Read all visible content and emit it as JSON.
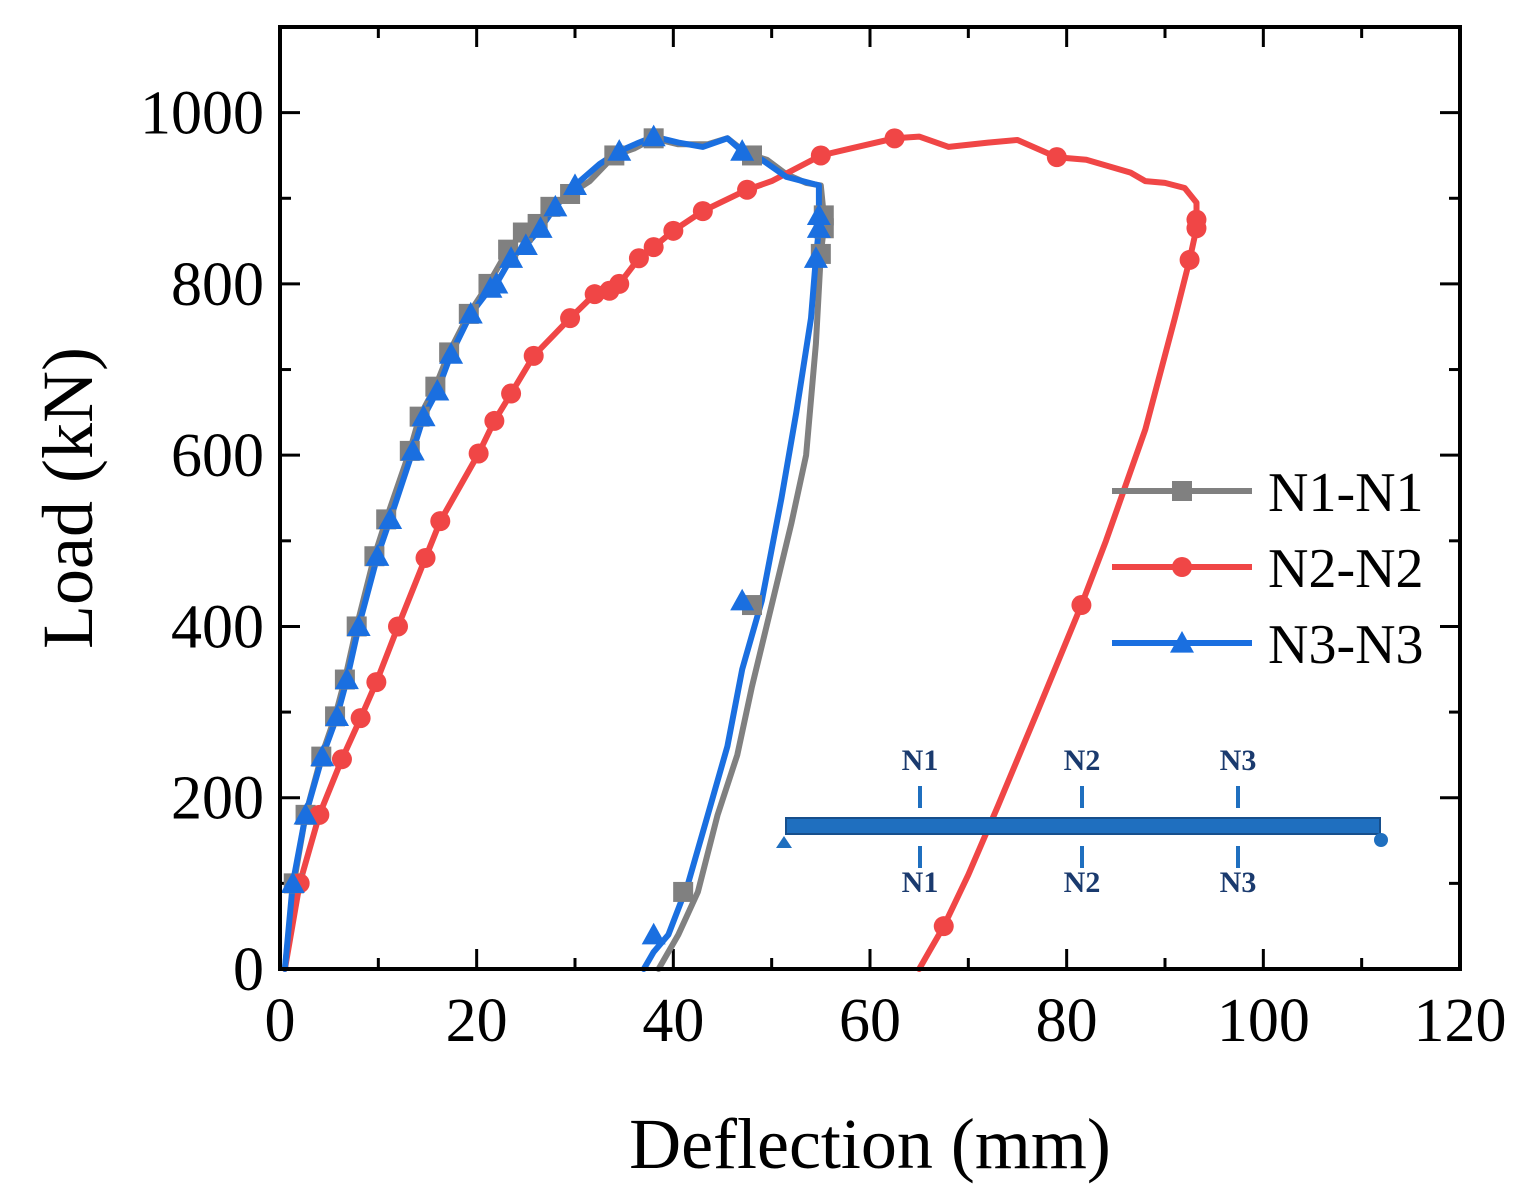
{
  "chart_data": {
    "type": "line",
    "title": "",
    "xlabel": "Deflection (mm)",
    "ylabel": "Load (kN)",
    "xlim": [
      0,
      120
    ],
    "ylim": [
      0,
      1100
    ],
    "xticks": [
      0,
      20,
      40,
      60,
      80,
      100,
      120
    ],
    "yticks": [
      0,
      200,
      400,
      600,
      800,
      1000
    ],
    "xtick_labels": [
      "0",
      "20",
      "40",
      "60",
      "80",
      "100",
      "120"
    ],
    "ytick_labels": [
      "0",
      "200",
      "400",
      "600",
      "800",
      "1000"
    ],
    "legend_position": "right-middle",
    "series": [
      {
        "name": "N1-N1",
        "color": "#808080",
        "marker": "square",
        "x": [
          0.5,
          1.4,
          2.6,
          4.2,
          5.6,
          6.6,
          7.8,
          9.6,
          10.8,
          13.2,
          14.2,
          15.8,
          17.2,
          19.2,
          21.2,
          23.2,
          24.7,
          26.2,
          27.5,
          29.5,
          31.5,
          34.0,
          36.0,
          38.0,
          40.5,
          43.5,
          45.5,
          47.5,
          49.5,
          51.5,
          53.5,
          55.0,
          55.3,
          55.3,
          55.0,
          54.5,
          53.5,
          52.0,
          50.0,
          48.0,
          46.5,
          44.5,
          42.5,
          40.5,
          38.5
        ],
        "y": [
          0,
          100,
          180,
          248,
          295,
          338,
          400,
          482,
          525,
          605,
          645,
          680,
          720,
          765,
          800,
          840,
          860,
          870,
          890,
          905,
          920,
          950,
          958,
          970,
          963,
          963,
          970,
          952,
          945,
          928,
          918,
          915,
          880,
          865,
          835,
          730,
          600,
          520,
          425,
          330,
          250,
          180,
          90,
          40,
          0
        ],
        "markers_x": [
          1.4,
          2.6,
          4.2,
          5.6,
          6.6,
          7.8,
          9.6,
          10.8,
          13.2,
          14.2,
          15.8,
          17.2,
          19.2,
          21.2,
          23.2,
          24.7,
          26.2,
          27.5,
          29.5,
          34.0,
          38.0,
          48.0,
          55.3,
          55.3,
          55.0,
          48.0,
          41.0
        ],
        "markers_y": [
          100,
          180,
          248,
          295,
          338,
          400,
          482,
          525,
          605,
          645,
          680,
          720,
          765,
          800,
          840,
          860,
          870,
          890,
          905,
          950,
          970,
          950,
          880,
          865,
          835,
          425,
          90
        ]
      },
      {
        "name": "N2-N2",
        "color": "#f04646",
        "marker": "circle",
        "x": [
          0.5,
          2.0,
          4.0,
          6.3,
          8.2,
          9.8,
          12.0,
          14.8,
          16.3,
          20.2,
          21.8,
          23.5,
          25.8,
          29.5,
          32.0,
          33.5,
          34.5,
          36.5,
          38.0,
          40.0,
          43.0,
          47.5,
          50.0,
          55.0,
          58.0,
          62.5,
          65.0,
          68.0,
          72.0,
          75.0,
          79.0,
          82.0,
          86.5,
          88.0,
          90.0,
          92.0,
          93.2,
          93.2,
          93.2,
          92.5,
          91.0,
          88.0,
          84.0,
          81.5,
          77.0,
          73.0,
          70.0,
          67.5,
          66.0,
          65.0
        ],
        "y": [
          0,
          100,
          180,
          245,
          293,
          335,
          400,
          480,
          523,
          602,
          640,
          672,
          716,
          760,
          788,
          792,
          800,
          830,
          843,
          862,
          885,
          910,
          920,
          950,
          958,
          970,
          972,
          960,
          965,
          968,
          948,
          945,
          930,
          920,
          918,
          912,
          895,
          875,
          865,
          828,
          760,
          630,
          500,
          425,
          300,
          190,
          110,
          50,
          20,
          0
        ],
        "markers_x": [
          2.0,
          4.0,
          6.3,
          8.2,
          9.8,
          12.0,
          14.8,
          16.3,
          20.2,
          21.8,
          23.5,
          25.8,
          29.5,
          32.0,
          33.5,
          34.5,
          36.5,
          38.0,
          40.0,
          43.0,
          47.5,
          55.0,
          62.5,
          79.0,
          93.2,
          93.2,
          92.5,
          81.5,
          67.5
        ],
        "markers_y": [
          100,
          180,
          245,
          293,
          335,
          400,
          480,
          523,
          602,
          640,
          672,
          716,
          760,
          788,
          792,
          800,
          830,
          843,
          862,
          885,
          910,
          950,
          970,
          948,
          875,
          865,
          828,
          425,
          50
        ]
      },
      {
        "name": "N3-N3",
        "color": "#1a6fe0",
        "marker": "triangle",
        "x": [
          0.5,
          1.3,
          2.6,
          4.3,
          5.8,
          6.8,
          8.0,
          9.9,
          11.2,
          13.5,
          14.6,
          16.0,
          17.4,
          19.4,
          21.4,
          22.0,
          23.5,
          25.0,
          26.5,
          28.0,
          30.0,
          32.5,
          34.5,
          36.5,
          38.0,
          40.5,
          43.0,
          45.5,
          47.0,
          49.0,
          51.5,
          54.8,
          54.8,
          54.8,
          54.5,
          54.0,
          52.5,
          51.0,
          49.0,
          47.0,
          45.5,
          43.5,
          41.5,
          39.5,
          38.0,
          37.0
        ],
        "y": [
          0,
          100,
          180,
          248,
          295,
          338,
          400,
          482,
          525,
          605,
          645,
          675,
          718,
          765,
          795,
          800,
          830,
          845,
          865,
          890,
          915,
          940,
          955,
          965,
          972,
          965,
          960,
          970,
          955,
          945,
          925,
          915,
          880,
          865,
          830,
          760,
          650,
          550,
          430,
          350,
          260,
          180,
          100,
          40,
          20,
          0
        ],
        "markers_x": [
          1.3,
          2.6,
          4.3,
          5.8,
          6.8,
          8.0,
          9.9,
          11.2,
          13.5,
          14.6,
          16.0,
          17.4,
          19.4,
          21.4,
          22.0,
          23.5,
          25.0,
          26.5,
          28.0,
          30.0,
          34.5,
          38.0,
          47.0,
          54.8,
          54.8,
          54.5,
          47.0,
          38.0
        ],
        "markers_y": [
          100,
          180,
          248,
          295,
          338,
          400,
          482,
          525,
          605,
          645,
          675,
          718,
          765,
          795,
          800,
          830,
          845,
          865,
          890,
          915,
          955,
          972,
          955,
          880,
          865,
          830,
          430,
          40
        ]
      }
    ],
    "inset": {
      "top_labels": [
        "N1",
        "N2",
        "N3"
      ],
      "bottom_labels": [
        "N1",
        "N2",
        "N3"
      ],
      "color": "#1f6fbf"
    }
  }
}
